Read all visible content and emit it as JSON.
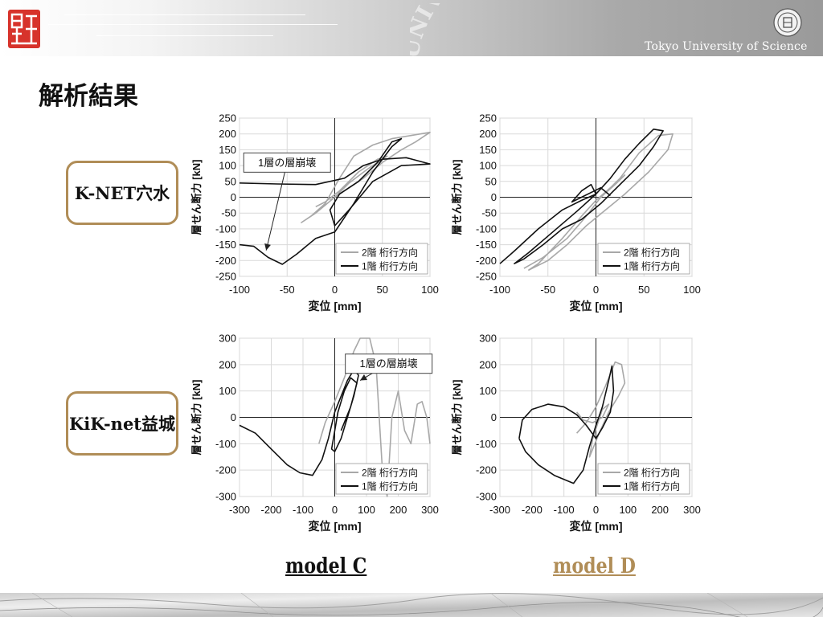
{
  "header": {
    "university_name": "Tokyo University of Science",
    "watermark_text": "UNIVERSITY OF",
    "logo_text": "理"
  },
  "slide": {
    "title": "解析結果",
    "row_labels": [
      "K-NET穴水",
      "KiK-net益城"
    ],
    "model_labels": [
      "model C",
      "model D"
    ]
  },
  "colors": {
    "accent": "#b08d57",
    "series_2f": "#a8a8a8",
    "series_1f": "#111111",
    "grid": "#d9d9d9"
  },
  "chart_data": [
    {
      "type": "line",
      "xlabel": "変位 [mm]",
      "ylabel": "層せん断力 [kN]",
      "xlim": [
        -100,
        100
      ],
      "xticks": [
        -100,
        -50,
        0,
        50,
        100
      ],
      "ylim": [
        -250,
        250
      ],
      "yticks": [
        250,
        200,
        150,
        100,
        50,
        0,
        -50,
        -100,
        -150,
        -200,
        -250
      ],
      "grid": true,
      "legend_position": "bottom-right",
      "annotation": {
        "text": "1層の層崩壊",
        "point": [
          -72,
          -168
        ],
        "box_at": [
          -50,
          140
        ]
      },
      "series": [
        {
          "name": "2階 桁行方向",
          "color": "#a8a8a8",
          "points": [
            [
              -5,
              -10
            ],
            [
              10,
              20
            ],
            [
              30,
              60
            ],
            [
              50,
              110
            ],
            [
              70,
              150
            ],
            [
              85,
              175
            ],
            [
              100,
              205
            ],
            [
              80,
              195
            ],
            [
              60,
              185
            ],
            [
              40,
              165
            ],
            [
              20,
              130
            ],
            [
              5,
              60
            ],
            [
              -10,
              -20
            ],
            [
              -25,
              -60
            ],
            [
              -35,
              -80
            ],
            [
              -20,
              -50
            ],
            [
              0,
              0
            ],
            [
              15,
              45
            ],
            [
              35,
              90
            ],
            [
              55,
              130
            ],
            [
              45,
              120
            ],
            [
              25,
              80
            ],
            [
              5,
              20
            ],
            [
              -10,
              -15
            ],
            [
              -20,
              -30
            ]
          ]
        },
        {
          "name": "1階 桁行方向",
          "color": "#111111",
          "points": [
            [
              -100,
              45
            ],
            [
              -60,
              42
            ],
            [
              -20,
              40
            ],
            [
              10,
              60
            ],
            [
              30,
              100
            ],
            [
              50,
              120
            ],
            [
              75,
              125
            ],
            [
              100,
              105
            ],
            [
              70,
              100
            ],
            [
              40,
              50
            ],
            [
              15,
              -40
            ],
            [
              0,
              -90
            ],
            [
              -5,
              -40
            ],
            [
              5,
              10
            ],
            [
              25,
              50
            ],
            [
              45,
              110
            ],
            [
              60,
              175
            ],
            [
              70,
              185
            ],
            [
              60,
              160
            ],
            [
              40,
              80
            ],
            [
              20,
              -20
            ],
            [
              0,
              -110
            ],
            [
              -20,
              -130
            ],
            [
              -40,
              -180
            ],
            [
              -55,
              -212
            ],
            [
              -70,
              -190
            ],
            [
              -85,
              -155
            ],
            [
              -100,
              -150
            ]
          ]
        }
      ]
    },
    {
      "type": "line",
      "xlabel": "変位 [mm]",
      "ylabel": "層せん断力 [kN]",
      "xlim": [
        -100,
        100
      ],
      "xticks": [
        -100,
        -50,
        0,
        50,
        100
      ],
      "ylim": [
        -250,
        250
      ],
      "yticks": [
        250,
        200,
        150,
        100,
        50,
        0,
        -50,
        -100,
        -150,
        -200,
        -250
      ],
      "grid": true,
      "legend_position": "bottom-right",
      "series": [
        {
          "name": "2階 桁行方向",
          "color": "#a8a8a8",
          "points": [
            [
              -75,
              -225
            ],
            [
              -55,
              -190
            ],
            [
              -30,
              -130
            ],
            [
              -10,
              -60
            ],
            [
              5,
              0
            ],
            [
              25,
              60
            ],
            [
              45,
              140
            ],
            [
              65,
              195
            ],
            [
              80,
              200
            ],
            [
              75,
              150
            ],
            [
              55,
              80
            ],
            [
              30,
              10
            ],
            [
              10,
              -40
            ],
            [
              -10,
              -90
            ],
            [
              -30,
              -150
            ],
            [
              -50,
              -200
            ],
            [
              -70,
              -230
            ],
            [
              -60,
              -210
            ],
            [
              -35,
              -130
            ],
            [
              -15,
              -60
            ],
            [
              0,
              -10
            ],
            [
              15,
              30
            ],
            [
              30,
              70
            ],
            [
              20,
              40
            ],
            [
              5,
              0
            ]
          ]
        },
        {
          "name": "1階 桁行方向",
          "color": "#111111",
          "points": [
            [
              -100,
              -210
            ],
            [
              -85,
              -170
            ],
            [
              -60,
              -100
            ],
            [
              -35,
              -40
            ],
            [
              -15,
              -10
            ],
            [
              0,
              10
            ],
            [
              15,
              60
            ],
            [
              30,
              120
            ],
            [
              45,
              170
            ],
            [
              60,
              215
            ],
            [
              70,
              210
            ],
            [
              60,
              160
            ],
            [
              45,
              100
            ],
            [
              25,
              40
            ],
            [
              5,
              -20
            ],
            [
              -15,
              -70
            ],
            [
              -35,
              -100
            ],
            [
              -55,
              -150
            ],
            [
              -75,
              -195
            ],
            [
              -85,
              -210
            ],
            [
              -70,
              -175
            ],
            [
              -45,
              -110
            ],
            [
              -20,
              -45
            ],
            [
              0,
              10
            ],
            [
              -5,
              40
            ],
            [
              -15,
              20
            ],
            [
              -25,
              -15
            ],
            [
              5,
              30
            ],
            [
              15,
              5
            ]
          ]
        }
      ]
    },
    {
      "type": "line",
      "xlabel": "変位 [mm]",
      "ylabel": "層せん断力 [kN]",
      "xlim": [
        -300,
        300
      ],
      "xticks": [
        -300,
        -200,
        -100,
        0,
        100,
        200,
        300
      ],
      "ylim": [
        -300,
        300
      ],
      "yticks": [
        300,
        200,
        100,
        0,
        -100,
        -200,
        -300
      ],
      "grid": true,
      "legend_position": "bottom-right",
      "annotation": {
        "text": "1層の層崩壊",
        "point": [
          80,
          140
        ],
        "box_at": [
          170,
          240
        ]
      },
      "series": [
        {
          "name": "2階 桁行方向",
          "color": "#a8a8a8",
          "points": [
            [
              -50,
              -100
            ],
            [
              -30,
              -20
            ],
            [
              0,
              60
            ],
            [
              30,
              150
            ],
            [
              60,
              250
            ],
            [
              80,
              300
            ],
            [
              110,
              300
            ],
            [
              130,
              200
            ],
            [
              150,
              -200
            ],
            [
              165,
              -300
            ],
            [
              180,
              0
            ],
            [
              200,
              100
            ],
            [
              220,
              -50
            ],
            [
              240,
              -100
            ],
            [
              260,
              50
            ],
            [
              275,
              60
            ],
            [
              290,
              0
            ],
            [
              300,
              -100
            ]
          ]
        },
        {
          "name": "1階 桁行方向",
          "color": "#111111",
          "points": [
            [
              -300,
              -30
            ],
            [
              -250,
              -60
            ],
            [
              -200,
              -120
            ],
            [
              -150,
              -180
            ],
            [
              -110,
              -210
            ],
            [
              -70,
              -220
            ],
            [
              -40,
              -160
            ],
            [
              -20,
              -80
            ],
            [
              0,
              20
            ],
            [
              20,
              80
            ],
            [
              40,
              140
            ],
            [
              60,
              180
            ],
            [
              75,
              160
            ],
            [
              60,
              80
            ],
            [
              40,
              0
            ],
            [
              20,
              -80
            ],
            [
              0,
              -130
            ],
            [
              -10,
              -120
            ],
            [
              10,
              20
            ],
            [
              30,
              100
            ],
            [
              50,
              150
            ],
            [
              70,
              130
            ],
            [
              50,
              40
            ],
            [
              20,
              -50
            ]
          ]
        }
      ]
    },
    {
      "type": "line",
      "xlabel": "変位 [mm]",
      "ylabel": "層せん断力 [kN]",
      "xlim": [
        -300,
        300
      ],
      "xticks": [
        -300,
        -200,
        -100,
        0,
        100,
        200,
        300
      ],
      "ylim": [
        -300,
        300
      ],
      "yticks": [
        300,
        200,
        100,
        0,
        -100,
        -200,
        -300
      ],
      "grid": true,
      "legend_position": "bottom-right",
      "series": [
        {
          "name": "2階 桁行方向",
          "color": "#a8a8a8",
          "points": [
            [
              -60,
              -60
            ],
            [
              -30,
              -20
            ],
            [
              0,
              40
            ],
            [
              30,
              120
            ],
            [
              60,
              210
            ],
            [
              80,
              200
            ],
            [
              90,
              130
            ],
            [
              70,
              80
            ],
            [
              40,
              20
            ],
            [
              10,
              -60
            ],
            [
              -10,
              -120
            ],
            [
              -20,
              -150
            ],
            [
              -10,
              -80
            ],
            [
              20,
              30
            ],
            [
              40,
              50
            ],
            [
              20,
              0
            ],
            [
              -10,
              -20
            ],
            [
              -40,
              -10
            ],
            [
              -60,
              20
            ]
          ]
        },
        {
          "name": "1階 桁行方向",
          "color": "#111111",
          "points": [
            [
              -240,
              -80
            ],
            [
              -220,
              -130
            ],
            [
              -180,
              -180
            ],
            [
              -130,
              -220
            ],
            [
              -70,
              -250
            ],
            [
              -40,
              -200
            ],
            [
              -20,
              -110
            ],
            [
              0,
              -30
            ],
            [
              20,
              40
            ],
            [
              40,
              140
            ],
            [
              50,
              195
            ],
            [
              55,
              100
            ],
            [
              45,
              20
            ],
            [
              20,
              -40
            ],
            [
              0,
              -80
            ],
            [
              -30,
              -30
            ],
            [
              -60,
              10
            ],
            [
              -100,
              40
            ],
            [
              -150,
              50
            ],
            [
              -200,
              30
            ],
            [
              -230,
              -10
            ],
            [
              -240,
              -80
            ]
          ]
        }
      ]
    }
  ]
}
